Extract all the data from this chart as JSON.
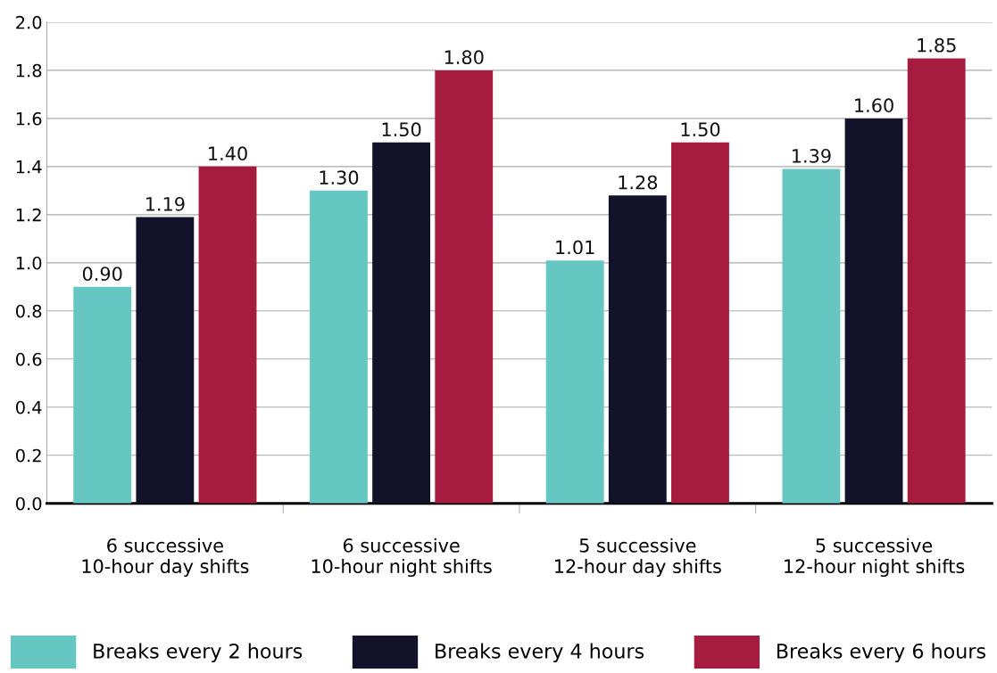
{
  "chart_data": {
    "type": "bar",
    "categories": [
      "6 successive\n10-hour day shifts",
      "6 successive\n10-hour night shifts",
      "5 successive\n12-hour day shifts",
      "5 successive\n12-hour night shifts"
    ],
    "series": [
      {
        "name": "Breaks every 2 hours",
        "color": "#66c7c2",
        "values": [
          0.9,
          1.3,
          1.01,
          1.39
        ],
        "value_labels": [
          "0.90",
          "1.30",
          "1.01",
          "1.39"
        ]
      },
      {
        "name": "Breaks every 4 hours",
        "color": "#12122a",
        "values": [
          1.19,
          1.5,
          1.28,
          1.6
        ],
        "value_labels": [
          "1.19",
          "1.50",
          "1.28",
          "1.60"
        ]
      },
      {
        "name": "Breaks every 6 hours",
        "color": "#a61c40",
        "values": [
          1.4,
          1.8,
          1.5,
          1.85
        ],
        "value_labels": [
          "1.40",
          "1.80",
          "1.50",
          "1.85"
        ]
      }
    ],
    "ylim": [
      0,
      2.0
    ],
    "yticks": [
      {
        "value": 0,
        "label": "0.0"
      },
      {
        "value": 0.2,
        "label": "0.2"
      },
      {
        "value": 0.4,
        "label": "0.4"
      },
      {
        "value": 0.6,
        "label": "0.6"
      },
      {
        "value": 0.8,
        "label": "0.8"
      },
      {
        "value": 1.0,
        "label": "1.0"
      },
      {
        "value": 1.2,
        "label": "1.2"
      },
      {
        "value": 1.4,
        "label": "1.4"
      },
      {
        "value": 1.6,
        "label": "1.6"
      },
      {
        "value": 1.8,
        "label": "1.8"
      },
      {
        "value": 2.0,
        "label": "2.0"
      }
    ],
    "grid": "y",
    "legend": "bottom"
  }
}
